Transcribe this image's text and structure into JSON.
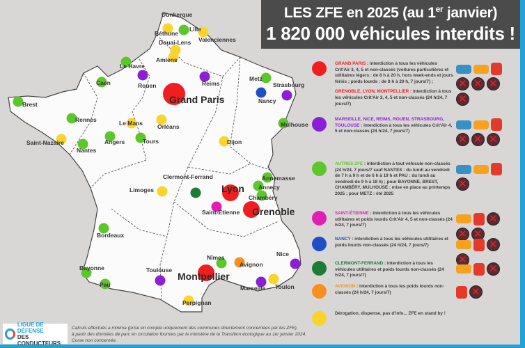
{
  "title": {
    "line1_pre": "LES ZFE en 2025 (au 1",
    "line1_sup": "er",
    "line1_post": " janvier)",
    "line2": "1 820 000 véhicules interdits !"
  },
  "colors": {
    "red": "#f01e1e",
    "purple": "#8a1fd6",
    "green": "#5cc72a",
    "magenta": "#e21fb5",
    "blue": "#1e4fc7",
    "darkgreen": "#1d7b34",
    "orange": "#f7901e",
    "yellow": "#fbd32a",
    "accent": "#21a3d6"
  },
  "cities": [
    {
      "name": "Dunkerque",
      "cat": "yellow"
    },
    {
      "name": "Lille",
      "cat": "green"
    },
    {
      "name": "Béthune",
      "cat": "yellow"
    },
    {
      "name": "Douai-Lens",
      "cat": "yellow"
    },
    {
      "name": "Valenciennes",
      "cat": "yellow"
    },
    {
      "name": "Amiens",
      "cat": "yellow"
    },
    {
      "name": "Le Havre",
      "cat": "green"
    },
    {
      "name": "Rouen",
      "cat": "purple"
    },
    {
      "name": "Caen",
      "cat": "green"
    },
    {
      "name": "Reims",
      "cat": "purple"
    },
    {
      "name": "Grand Paris",
      "cat": "red"
    },
    {
      "name": "Metz",
      "cat": "green"
    },
    {
      "name": "Strasbourg",
      "cat": "purple"
    },
    {
      "name": "Nancy",
      "cat": "blue"
    },
    {
      "name": "Brest",
      "cat": "green"
    },
    {
      "name": "Rennes",
      "cat": "green"
    },
    {
      "name": "Le Mans",
      "cat": "yellow"
    },
    {
      "name": "Orléans",
      "cat": "yellow"
    },
    {
      "name": "Mulhouse",
      "cat": "green"
    },
    {
      "name": "Saint-Nazaire",
      "cat": "yellow"
    },
    {
      "name": "Angers",
      "cat": "green"
    },
    {
      "name": "Tours",
      "cat": "green"
    },
    {
      "name": "Nantes",
      "cat": "green"
    },
    {
      "name": "Dijon",
      "cat": "yellow"
    },
    {
      "name": "Annemasse",
      "cat": "green"
    },
    {
      "name": "Annecy",
      "cat": "green"
    },
    {
      "name": "Chambéry",
      "cat": "green"
    },
    {
      "name": "Clermont-Ferrand",
      "cat": "darkgreen"
    },
    {
      "name": "Lyon",
      "cat": "red"
    },
    {
      "name": "Limoges",
      "cat": "yellow"
    },
    {
      "name": "Saint-Étienne",
      "cat": "magenta"
    },
    {
      "name": "Grenoble",
      "cat": "red"
    },
    {
      "name": "Bordeaux",
      "cat": "green"
    },
    {
      "name": "Nîmes",
      "cat": "green"
    },
    {
      "name": "Avignon",
      "cat": "orange"
    },
    {
      "name": "Nice",
      "cat": "purple"
    },
    {
      "name": "Bayonne",
      "cat": "green"
    },
    {
      "name": "Toulouse",
      "cat": "purple"
    },
    {
      "name": "Montpellier",
      "cat": "red"
    },
    {
      "name": "Pau",
      "cat": "green"
    },
    {
      "name": "Marseille",
      "cat": "purple"
    },
    {
      "name": "Toulon",
      "cat": "yellow"
    },
    {
      "name": "Perpignan",
      "cat": "yellow"
    }
  ],
  "legend": [
    {
      "cat": "red",
      "paragraphs": [
        {
          "hl": "GRAND PARIS",
          "text": " : interdiction à tous les véhicules Crit'Air 3, 4, 5 et non-classés (voitures particulières et utilitaires légers : de 8 h à 20 h, hors week-ends et jours fériés ; poids lourds : de 8 h à 20 h, 7 jours/7) ;"
        },
        {
          "hl": "GRENOBLE, LYON, MONTPELLIER",
          "text": " : interdiction à tous les véhicules Crit'Air 3, 4, 5 et non-classés (24 h/24, 7 jours/7)"
        }
      ]
    },
    {
      "cat": "purple",
      "paragraphs": [
        {
          "hl": "MARSEILLE, NICE, REIMS, ROUEN, STRASBOURG, TOULOUSE",
          "text": " : interdiction à tous les véhicules Crit'Air 4, 5 et non-classés (24 h/24, 7 jours/7)"
        }
      ]
    },
    {
      "cat": "green",
      "paragraphs": [
        {
          "hl": "AUTRES ZFE",
          "text": " : interdiction à tout véhicule non-classés (24 h/24, 7 jours/7 sauf NANTES : du lundi au vendredi de 7 h à 9 h et de 6 h à 19 h et PAU : du lundi au vendredi de 9 h à 18 h) ; pour BAYONNE, BREST, CHAMBÉRY, MULHOUSE : mise en place au printemps 2025 ; pour METZ : été 2025"
        }
      ]
    },
    {
      "cat": "magenta",
      "paragraphs": [
        {
          "hl": "SAINT-ÉTIENNE",
          "text": " : interdiction à tous les véhicules utilitaires et poids lourds Crit'Air 4, 5 et non-classés (24 h/24, 7 jours/7)"
        }
      ]
    },
    {
      "cat": "blue",
      "paragraphs": [
        {
          "hl": "NANCY",
          "text": " : interdiction à tous les véhicules utilitaires et poids lourds non-classés (24 h/24, 7 jours/7)"
        }
      ]
    },
    {
      "cat": "darkgreen",
      "paragraphs": [
        {
          "hl": "CLERMONT-FERRAND",
          "text": " : interdiction à tous les véhicules utilitaires et poids lourds non-classés (24 h/24, 7 jours/7)"
        }
      ]
    },
    {
      "cat": "orange",
      "paragraphs": [
        {
          "hl": "AVIGNON",
          "text": " : interdiction à tous les poids lourds non-classés (24 h/24, 7 jours/7)"
        }
      ]
    },
    {
      "cat": "yellow",
      "paragraphs": [
        {
          "hl": "",
          "text": "Dérogation, dispense, pas d'info... ZFE en stand by !"
        }
      ]
    }
  ],
  "footer": {
    "logo_line1": "LIGUE DE DÉFENSE",
    "logo_line2": "DES CONDUCTEURS",
    "note_line1": "Calculs effectués a minima (prise en compte uniquement des communes directement concernées par les ZFE),",
    "note_line2": "à partir des données de parc en circulation fournies par le ministère de la Transition écologique au 1er janvier 2024. Corse non concernée."
  }
}
